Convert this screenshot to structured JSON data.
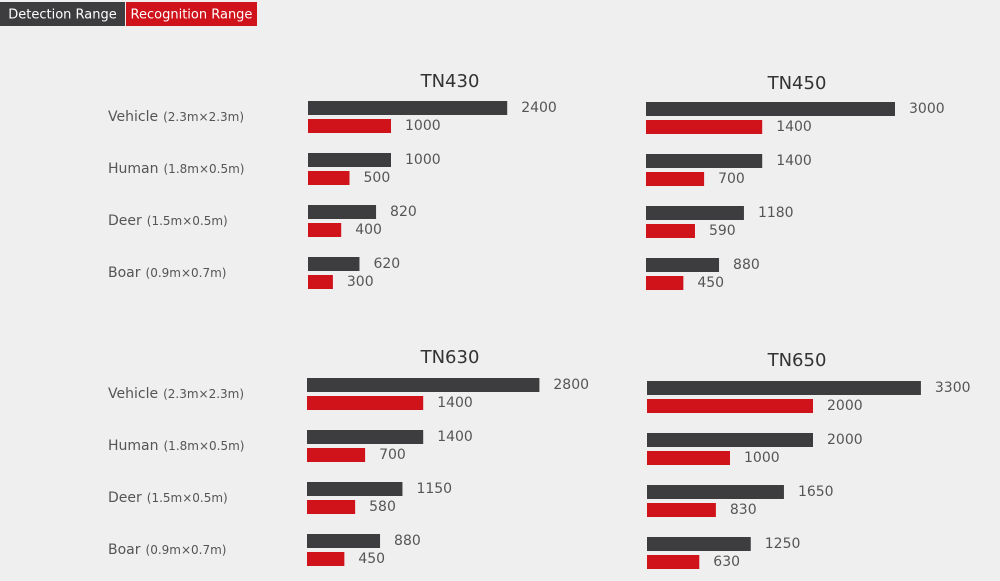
{
  "legend": {
    "items": [
      {
        "name": "Detection Range",
        "color": "#3d3d3f"
      },
      {
        "name": "Recognition Range",
        "color": "#d0121b"
      }
    ]
  },
  "categories": [
    "Vehicle",
    "Human",
    "Deer",
    "Boar"
  ],
  "category_notes": [
    "(2.3m×2.3m)",
    "(1.8m×0.5m)",
    "(1.5m×0.5m)",
    "(0.9m×0.7m)"
  ],
  "chart_data": [
    {
      "type": "bar",
      "orientation": "horizontal",
      "title": "TN430",
      "series": [
        {
          "values": [
            2400,
            1000,
            820,
            620
          ]
        },
        {
          "values": [
            1000,
            500,
            400,
            300
          ]
        }
      ]
    },
    {
      "type": "bar",
      "orientation": "horizontal",
      "title": "TN450",
      "series": [
        {
          "values": [
            3000,
            1400,
            1180,
            880
          ]
        },
        {
          "values": [
            1400,
            700,
            590,
            450
          ]
        }
      ]
    },
    {
      "type": "bar",
      "orientation": "horizontal",
      "title": "TN630",
      "series": [
        {
          "values": [
            2800,
            1400,
            1150,
            880
          ]
        },
        {
          "values": [
            1400,
            700,
            580,
            450
          ]
        }
      ]
    },
    {
      "type": "bar",
      "orientation": "horizontal",
      "title": "TN650",
      "series": [
        {
          "values": [
            3300,
            2000,
            1650,
            1250
          ]
        },
        {
          "values": [
            2000,
            1000,
            830,
            630
          ]
        }
      ]
    }
  ]
}
